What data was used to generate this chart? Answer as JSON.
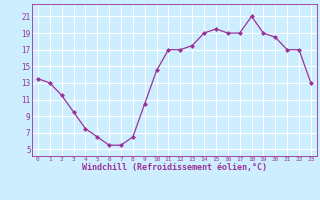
{
  "x": [
    0,
    1,
    2,
    3,
    4,
    5,
    6,
    7,
    8,
    9,
    10,
    11,
    12,
    13,
    14,
    15,
    16,
    17,
    18,
    19,
    20,
    21,
    22,
    23
  ],
  "y": [
    13.5,
    13.0,
    11.5,
    9.5,
    7.5,
    6.5,
    5.5,
    5.5,
    6.5,
    10.5,
    14.5,
    17.0,
    17.0,
    17.5,
    19.0,
    19.5,
    19.0,
    19.0,
    21.0,
    19.0,
    18.5,
    17.0,
    17.0,
    13.0
  ],
  "line_color": "#993399",
  "marker_color": "#993399",
  "bg_color": "#cceeff",
  "grid_color": "#ffffff",
  "xlabel": "Windchill (Refroidissement éolien,°C)",
  "xlabel_color": "#993399",
  "tick_color": "#993399",
  "yticks": [
    5,
    7,
    9,
    11,
    13,
    15,
    17,
    19,
    21
  ],
  "xticks": [
    0,
    1,
    2,
    3,
    4,
    5,
    6,
    7,
    8,
    9,
    10,
    11,
    12,
    13,
    14,
    15,
    16,
    17,
    18,
    19,
    20,
    21,
    22,
    23
  ],
  "ylim": [
    4.2,
    22.5
  ],
  "xlim": [
    -0.5,
    23.5
  ]
}
